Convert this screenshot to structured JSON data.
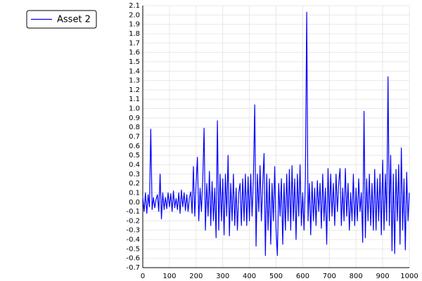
{
  "chart_data": {
    "type": "line",
    "x": [
      0,
      5,
      10,
      15,
      20,
      25,
      30,
      35,
      40,
      45,
      50,
      55,
      60,
      65,
      70,
      75,
      80,
      85,
      90,
      95,
      100,
      105,
      110,
      115,
      120,
      125,
      130,
      135,
      140,
      145,
      150,
      155,
      160,
      165,
      170,
      175,
      180,
      185,
      190,
      195,
      200,
      205,
      210,
      215,
      220,
      225,
      230,
      235,
      240,
      245,
      250,
      255,
      260,
      265,
      270,
      275,
      280,
      285,
      290,
      295,
      300,
      305,
      310,
      315,
      320,
      325,
      330,
      335,
      340,
      345,
      350,
      355,
      360,
      365,
      370,
      375,
      380,
      385,
      390,
      395,
      400,
      405,
      410,
      415,
      420,
      425,
      430,
      435,
      440,
      445,
      450,
      455,
      460,
      465,
      470,
      475,
      480,
      485,
      490,
      495,
      500,
      505,
      510,
      515,
      520,
      525,
      530,
      535,
      540,
      545,
      550,
      555,
      560,
      565,
      570,
      575,
      580,
      585,
      590,
      595,
      600,
      605,
      610,
      615,
      620,
      625,
      630,
      635,
      640,
      645,
      650,
      655,
      660,
      665,
      670,
      675,
      680,
      685,
      690,
      695,
      700,
      705,
      710,
      715,
      720,
      725,
      730,
      735,
      740,
      745,
      750,
      755,
      760,
      765,
      770,
      775,
      780,
      785,
      790,
      795,
      800,
      805,
      810,
      815,
      820,
      825,
      830,
      835,
      840,
      845,
      850,
      855,
      860,
      865,
      870,
      875,
      880,
      885,
      890,
      895,
      900,
      905,
      910,
      915,
      920,
      925,
      930,
      935,
      940,
      945,
      950,
      955,
      960,
      965,
      970,
      975,
      980,
      985,
      990,
      995,
      1000
    ],
    "series": [
      {
        "name": "Asset 2",
        "color": "#0000ff",
        "values": [
          0.05,
          -0.1,
          0.1,
          -0.12,
          0.08,
          -0.05,
          0.78,
          -0.08,
          0.05,
          -0.06,
          0.03,
          0.08,
          -0.1,
          0.3,
          -0.18,
          0.1,
          -0.08,
          0.05,
          -0.07,
          0.1,
          -0.05,
          0.09,
          -0.1,
          0.12,
          -0.06,
          0.04,
          -0.08,
          0.1,
          -0.12,
          0.13,
          -0.05,
          0.1,
          -0.09,
          0.08,
          -0.1,
          0.05,
          0.11,
          -0.12,
          0.38,
          -0.15,
          0.2,
          0.48,
          -0.2,
          0.15,
          -0.1,
          0.25,
          0.79,
          -0.3,
          0.2,
          -0.15,
          0.33,
          -0.25,
          0.22,
          -0.2,
          0.15,
          -0.38,
          0.87,
          -0.3,
          0.3,
          -0.2,
          0.25,
          -0.35,
          0.3,
          -0.15,
          0.5,
          -0.36,
          0.2,
          -0.2,
          0.3,
          -0.25,
          0.15,
          -0.3,
          0.1,
          0.2,
          -0.25,
          0.25,
          -0.2,
          0.3,
          -0.25,
          0.27,
          -0.2,
          0.3,
          -0.15,
          0.25,
          1.04,
          -0.47,
          0.3,
          -0.1,
          0.39,
          -0.2,
          0.2,
          0.52,
          -0.57,
          0.3,
          -0.3,
          0.25,
          -0.45,
          0.2,
          -0.2,
          0.38,
          -0.3,
          -0.57,
          0.2,
          -0.15,
          0.25,
          -0.45,
          0.2,
          -0.3,
          0.3,
          -0.2,
          0.35,
          -0.3,
          0.39,
          -0.2,
          0.25,
          -0.4,
          0.3,
          -0.15,
          0.4,
          -0.25,
          0.1,
          -0.3,
          0.25,
          2.03,
          -0.2,
          0.2,
          -0.35,
          0.22,
          -0.2,
          0.15,
          -0.25,
          0.23,
          -0.1,
          0.2,
          -0.28,
          0.3,
          -0.2,
          0.15,
          -0.45,
          0.36,
          -0.2,
          0.3,
          -0.15,
          0.2,
          -0.25,
          0.3,
          -0.1,
          0.2,
          0.36,
          -0.25,
          0.15,
          -0.2,
          0.36,
          -0.15,
          0.2,
          -0.3,
          0.1,
          -0.2,
          0.3,
          -0.25,
          0.15,
          -0.2,
          0.25,
          -0.1,
          0.1,
          -0.43,
          0.97,
          -0.38,
          0.25,
          -0.2,
          0.3,
          -0.25,
          0.2,
          -0.3,
          0.35,
          -0.3,
          0.25,
          -0.2,
          0.3,
          -0.35,
          0.45,
          -0.3,
          0.3,
          -0.2,
          1.34,
          -0.25,
          0.5,
          -0.52,
          0.3,
          -0.55,
          0.35,
          -0.2,
          0.4,
          -0.45,
          0.58,
          -0.3,
          0.25,
          -0.51,
          0.32,
          -0.2,
          0.1
        ]
      }
    ],
    "xlim": [
      0,
      1000
    ],
    "xticks": [
      0,
      100,
      200,
      300,
      400,
      500,
      600,
      700,
      800,
      900,
      1000
    ],
    "ylim": [
      -0.7,
      2.1
    ],
    "yticks": [
      -0.7,
      -0.6,
      -0.5,
      -0.4,
      -0.3,
      -0.2,
      -0.1,
      {
        "value": 0,
        "label": "0.0"
      },
      0.1,
      0.2,
      0.3,
      0.4,
      0.5,
      0.6,
      0.7,
      0.8,
      0.9,
      {
        "value": 1,
        "label": "1.0"
      },
      1.1,
      1.2,
      1.3,
      1.4,
      1.5,
      1.6,
      1.7,
      1.8,
      1.9,
      {
        "value": 2,
        "label": "2.0"
      },
      2.1
    ],
    "grid": true,
    "legend": "top-left"
  }
}
